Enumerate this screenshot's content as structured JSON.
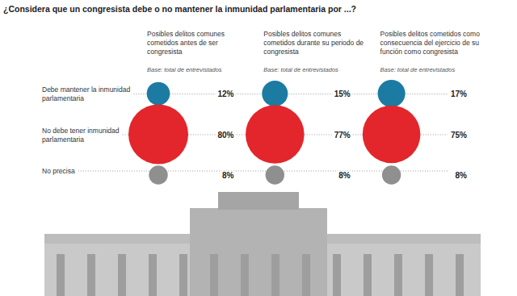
{
  "chart_data": {
    "type": "bubble",
    "title": "¿Considera que un congresista debe o no mantener la inmunidad parlamentaria por ...?",
    "note": "Base: total de entrevistados",
    "categories": [
      "Debe mantener la inmunidad parlamentaria",
      "No debe tener inmunidad parlamentaria",
      "No precisa"
    ],
    "series": [
      {
        "name": "Posibles delitos comunes cometidos antes de ser congresista",
        "values": [
          12,
          80,
          8
        ],
        "value_labels": [
          "12%",
          "80%",
          "8%"
        ],
        "colors": [
          "#1b7ba3",
          "#e3262b",
          "#8f8f8f"
        ]
      },
      {
        "name": "Posibles delitos comunes cometidos durante su periodo de congresista",
        "values": [
          15,
          77,
          8
        ],
        "value_labels": [
          "15%",
          "77%",
          "8%"
        ],
        "colors": [
          "#1b7ba3",
          "#e3262b",
          "#8f8f8f"
        ]
      },
      {
        "name": "Posibles delitos cometidos como consecuencia del ejercicio de su función como congresista",
        "values": [
          17,
          75,
          8
        ],
        "value_labels": [
          "17%",
          "75%",
          "8%"
        ],
        "colors": [
          "#1b7ba3",
          "#e3262b",
          "#8f8f8f"
        ]
      }
    ],
    "data_labels": true
  }
}
